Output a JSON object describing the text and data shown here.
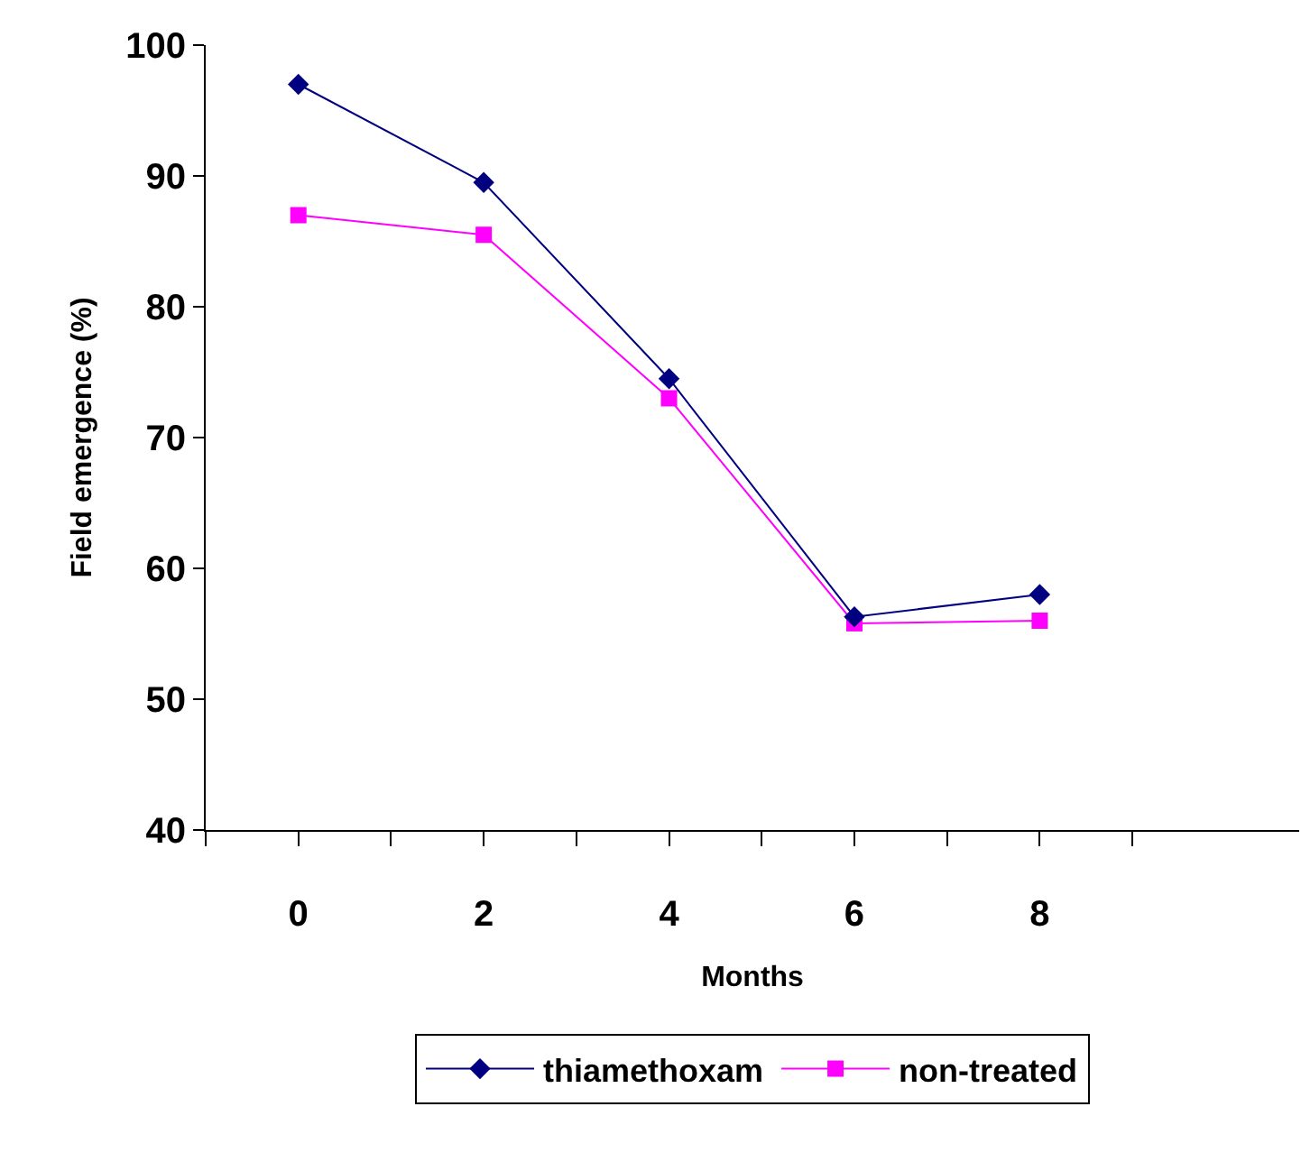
{
  "chart_data": {
    "type": "line",
    "xlabel": "Months",
    "ylabel": "Field emergence (%)",
    "x": [
      0,
      2,
      4,
      6,
      8
    ],
    "xlim": [
      -1,
      10.8
    ],
    "xticks": [
      {
        "value": -1,
        "label": null
      },
      0,
      {
        "value": 1,
        "label": null
      },
      2,
      {
        "value": 3,
        "label": null
      },
      4,
      {
        "value": 5,
        "label": null
      },
      6,
      {
        "value": 7,
        "label": null
      },
      8,
      {
        "value": 9,
        "label": null
      }
    ],
    "ylim": [
      40,
      100
    ],
    "yticks": [
      40,
      50,
      60,
      70,
      80,
      90,
      100
    ],
    "series": [
      {
        "name": "thiamethoxam",
        "color": "#000080",
        "marker": "diamond",
        "values": [
          97,
          89.5,
          74.5,
          56.3,
          58
        ]
      },
      {
        "name": "non-treated",
        "color": "#ff00ff",
        "marker": "square",
        "values": [
          87,
          85.5,
          73,
          55.8,
          56
        ]
      }
    ],
    "grid": false,
    "legend": "bottom",
    "line_style": "solid"
  }
}
